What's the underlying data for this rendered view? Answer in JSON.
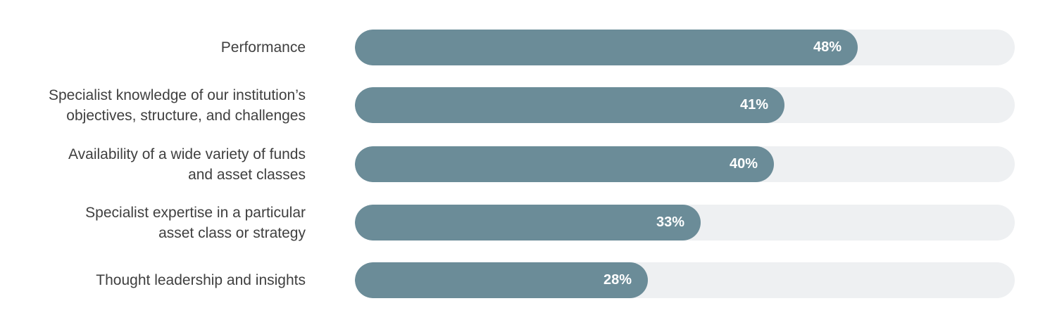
{
  "colors": {
    "bar": "#6b8c98",
    "track": "#eef0f2",
    "label": "#3f3f3f",
    "value": "#ffffff"
  },
  "chart_data": {
    "type": "bar",
    "orientation": "horizontal",
    "title": "",
    "xlabel": "",
    "ylabel": "",
    "xlim": [
      0,
      100
    ],
    "grid": false,
    "categories": [
      [
        "Performance"
      ],
      [
        "Specialist knowledge of our institution’s",
        "objectives, structure, and challenges"
      ],
      [
        "Availability of a wide variety of funds",
        "and asset classes"
      ],
      [
        "Specialist expertise in a particular",
        "asset class or strategy"
      ],
      [
        "Thought leadership and insights"
      ]
    ],
    "values": [
      48,
      41,
      40,
      33,
      28
    ],
    "value_labels": [
      "48%",
      "41%",
      "40%",
      "33%",
      "28%"
    ]
  }
}
